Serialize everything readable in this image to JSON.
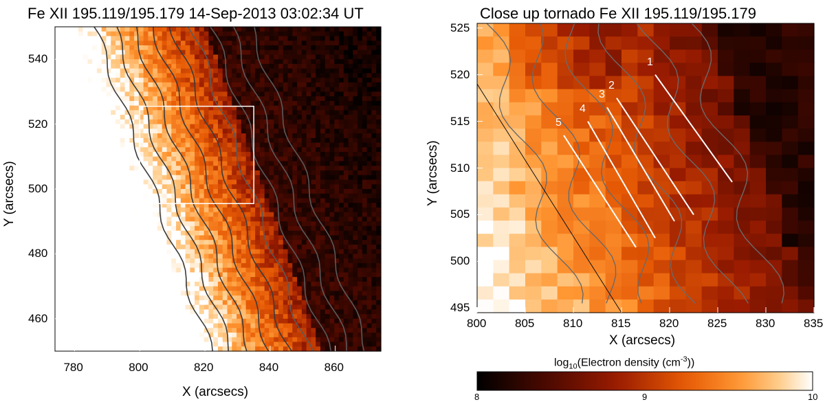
{
  "chart_data": [
    {
      "type": "heatmap",
      "title": "Fe XII 195.119/195.179 14-Sep-2013 03:02:34 UT",
      "xlabel": "X (arcsecs)",
      "ylabel": "Y (arcsecs)",
      "xlim": [
        774,
        874
      ],
      "ylim": [
        450,
        550
      ],
      "xticks": [
        780,
        800,
        820,
        840,
        860
      ],
      "yticks": [
        460,
        480,
        500,
        520,
        540
      ],
      "box": {
        "x": [
          800,
          835
        ],
        "y": [
          495.5,
          525.5
        ]
      }
    },
    {
      "type": "heatmap",
      "title": "Close up tornado Fe XII 195.119/195.179",
      "xlabel": "X (arcsecs)",
      "ylabel": "Y (arcsecs)",
      "xlim": [
        800,
        835
      ],
      "ylim": [
        494.5,
        525.5
      ],
      "xticks": [
        800,
        805,
        810,
        815,
        820,
        825,
        830,
        835
      ],
      "yticks": [
        495,
        500,
        505,
        510,
        515,
        520,
        525
      ],
      "slits": [
        {
          "label": "1",
          "start": [
            818.5,
            520
          ],
          "end": [
            826.5,
            508.5
          ]
        },
        {
          "label": "2",
          "start": [
            814.5,
            517.5
          ],
          "end": [
            822.5,
            505
          ]
        },
        {
          "label": "3",
          "start": [
            813.5,
            516.5
          ],
          "end": [
            820.5,
            504.3
          ]
        },
        {
          "label": "4",
          "start": [
            811.5,
            515
          ],
          "end": [
            818.5,
            502.5
          ]
        },
        {
          "label": "5",
          "start": [
            809,
            513.5
          ],
          "end": [
            816.5,
            501.5
          ]
        }
      ],
      "colorbar": {
        "label": "log10(Electron density (cm^-3))",
        "label_parts": {
          "pre": "log",
          "sub": "10",
          "mid": "(Electron density (cm",
          "sup": "-3",
          "post": "))"
        },
        "range": [
          8,
          10
        ],
        "ticks": [
          "8",
          "9",
          "10"
        ]
      }
    }
  ]
}
